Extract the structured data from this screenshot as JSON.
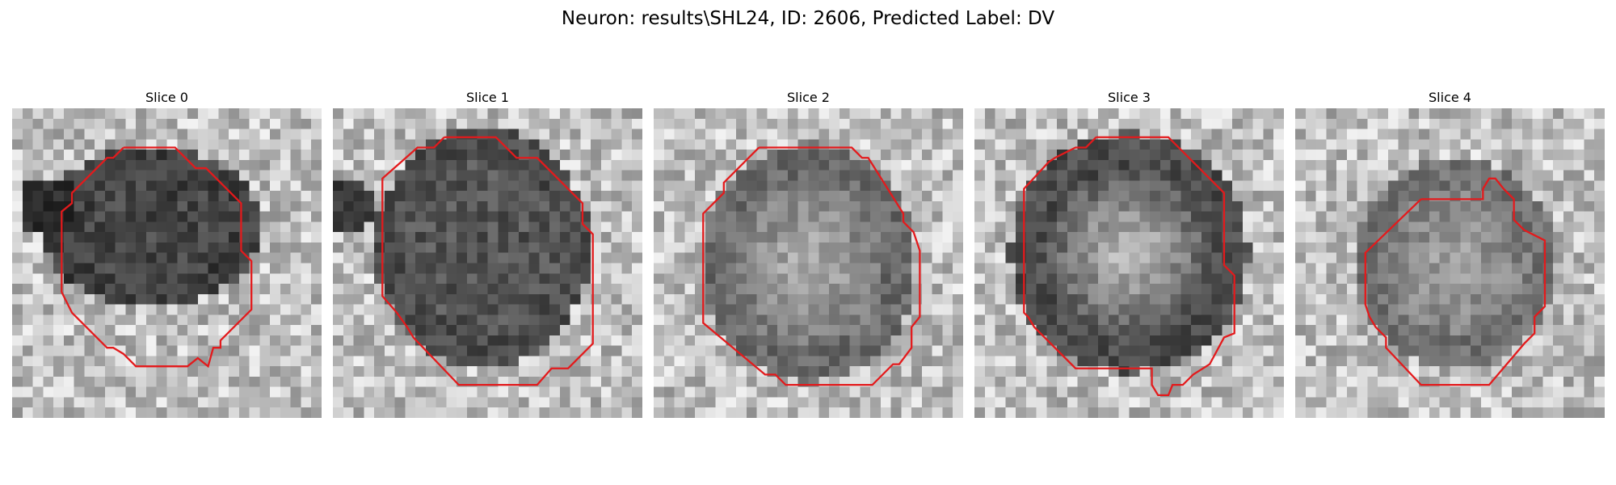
{
  "figure": {
    "title": "Neuron: results\\SHL24, ID: 2606, Predicted Label: DV"
  },
  "panels": [
    {
      "title": "Slice 0",
      "contour_color": "#e31a1c"
    },
    {
      "title": "Slice 1",
      "contour_color": "#e31a1c"
    },
    {
      "title": "Slice 2",
      "contour_color": "#e31a1c"
    },
    {
      "title": "Slice 3",
      "contour_color": "#e31a1c"
    },
    {
      "title": "Slice 4",
      "contour_color": "#e31a1c"
    }
  ]
}
